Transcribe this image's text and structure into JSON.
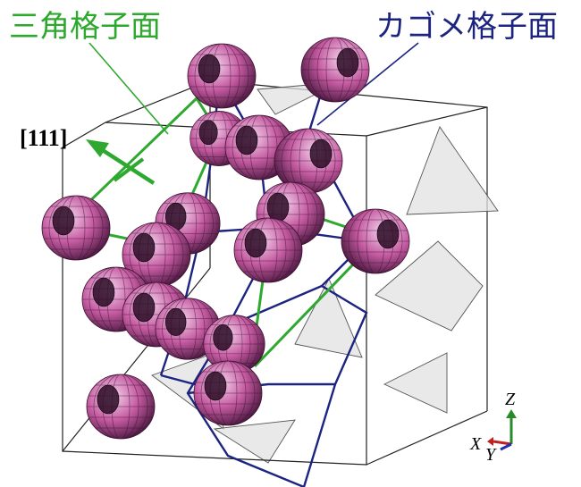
{
  "labels": {
    "triangular_plane": "三角格子面",
    "kagome_plane": "カゴメ格子面",
    "direction": "[111]"
  },
  "axes": {
    "z": "Z",
    "x": "X",
    "y": "Y"
  },
  "colors": {
    "triangular_line": "#2ea82e",
    "kagome_line": "#1c2480",
    "triangular_label": "#2ea82e",
    "kagome_label": "#1c2480",
    "cube_edge": "#222222",
    "tetrahedron_fill": "#e2e2e2",
    "ion_light": "#f6d6f0",
    "ion_mid": "#c45aa0",
    "ion_dark": "#4d1a42",
    "axis_z": "#2a8a2a",
    "axis_x": "#c02020",
    "axis_y": "#2030b0"
  }
}
